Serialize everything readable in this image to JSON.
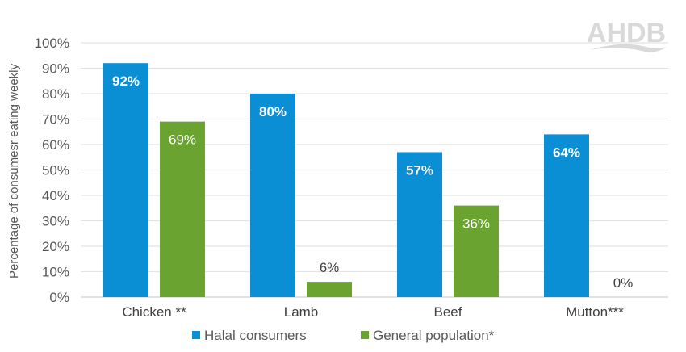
{
  "chart_data": {
    "type": "bar",
    "categories": [
      "Chicken **",
      "Lamb",
      "Beef",
      "Mutton***"
    ],
    "series": [
      {
        "name": "Halal consumers",
        "values": [
          92,
          80,
          57,
          64
        ],
        "color": "#0a8fd4"
      },
      {
        "name": "General population*",
        "values": [
          69,
          6,
          36,
          0
        ],
        "color": "#6aa330"
      }
    ],
    "data_labels": [
      [
        "92%",
        "80%",
        "57%",
        "64%"
      ],
      [
        "69%",
        "6%",
        "36%",
        "0%"
      ]
    ],
    "ylabel": "Percentage of consumesr eating weekly",
    "xlabel": "",
    "ylim": [
      0,
      100
    ],
    "yticks": [
      "0%",
      "10%",
      "20%",
      "30%",
      "40%",
      "50%",
      "60%",
      "70%",
      "80%",
      "90%",
      "100%"
    ],
    "grid": true,
    "legend": "bottom"
  },
  "logo": {
    "text": "AHDB"
  }
}
